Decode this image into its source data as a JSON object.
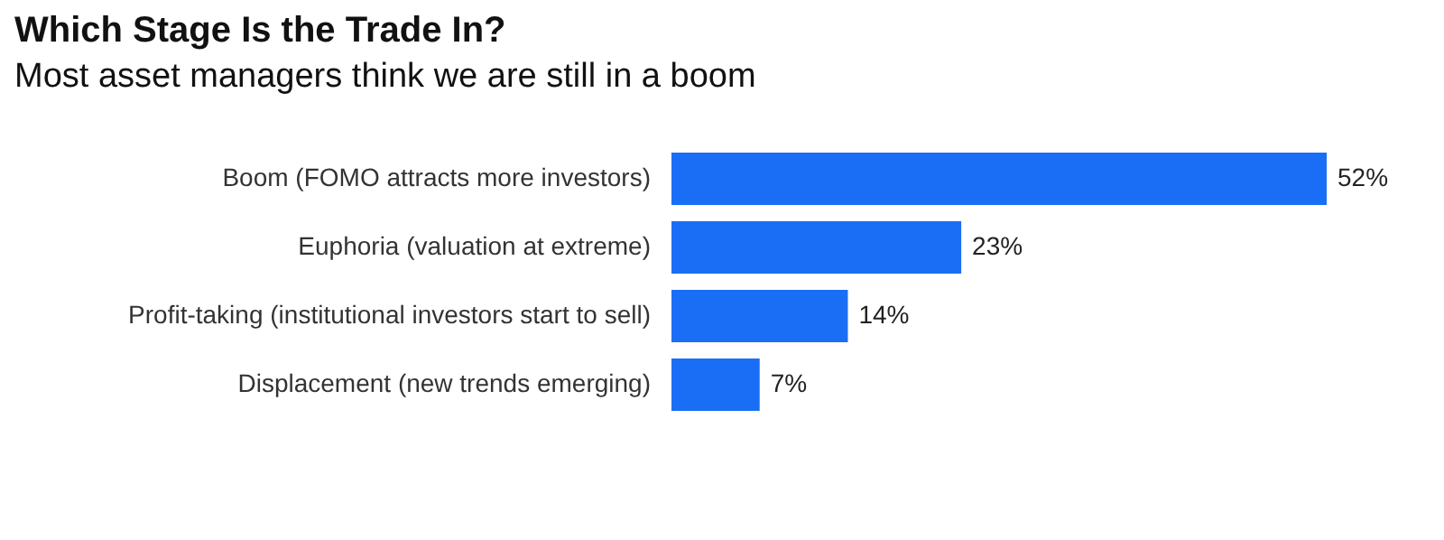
{
  "chart_data": {
    "type": "bar",
    "orientation": "horizontal",
    "title": "Which Stage Is the Trade In?",
    "subtitle": "Most asset managers think we are still in a boom",
    "categories": [
      "Boom (FOMO attracts more investors)",
      "Euphoria (valuation at extreme)",
      "Profit-taking (institutional investors start to sell)",
      "Displacement (new trends emerging)"
    ],
    "values": [
      52,
      23,
      14,
      7
    ],
    "value_labels": [
      "52%",
      "23%",
      "14%",
      "7%"
    ],
    "color": "#1a6ef5"
  }
}
